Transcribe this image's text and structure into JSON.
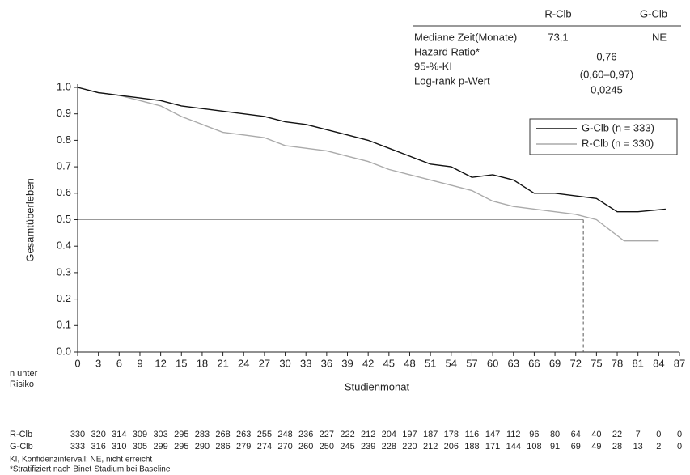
{
  "chart_data": {
    "type": "line",
    "y_label": "Gesamtüberleben",
    "x_label": "Studienmonat",
    "xlim": [
      0,
      87
    ],
    "xticks": [
      0,
      3,
      6,
      9,
      12,
      15,
      18,
      21,
      24,
      27,
      30,
      33,
      36,
      39,
      42,
      45,
      48,
      51,
      54,
      57,
      60,
      63,
      66,
      69,
      72,
      75,
      78,
      81,
      84,
      87
    ],
    "ylim": [
      0,
      1
    ],
    "yticks": [
      {
        "value": 0,
        "label": "0.0"
      },
      0.1,
      0.2,
      0.3,
      0.4,
      0.5,
      0.6,
      0.7,
      0.8,
      0.9,
      {
        "value": 1,
        "label": "1.0"
      }
    ],
    "legend_position": "upper right",
    "series": [
      {
        "name": "G-Clb (n = 333)",
        "color": "#111111",
        "x": [
          0,
          3,
          6,
          9,
          12,
          15,
          18,
          21,
          24,
          27,
          30,
          33,
          36,
          39,
          42,
          45,
          48,
          51,
          54,
          57,
          60,
          63,
          66,
          69,
          72,
          75,
          78,
          81,
          85
        ],
        "values": [
          1,
          0.98,
          0.97,
          0.96,
          0.95,
          0.93,
          0.92,
          0.91,
          0.9,
          0.89,
          0.87,
          0.86,
          0.84,
          0.82,
          0.8,
          0.77,
          0.74,
          0.71,
          0.7,
          0.66,
          0.67,
          0.65,
          0.6,
          0.6,
          0.59,
          0.58,
          0.53,
          0.53,
          0.54
        ]
      },
      {
        "name": "R-Clb (n = 330)",
        "color": "#aaaaaa",
        "x": [
          0,
          3,
          6,
          9,
          12,
          15,
          18,
          21,
          24,
          27,
          30,
          33,
          36,
          39,
          42,
          45,
          48,
          51,
          54,
          57,
          60,
          63,
          66,
          69,
          72,
          75,
          78,
          79,
          84
        ],
        "values": [
          1,
          0.98,
          0.97,
          0.95,
          0.93,
          0.89,
          0.86,
          0.83,
          0.82,
          0.81,
          0.78,
          0.77,
          0.76,
          0.74,
          0.72,
          0.69,
          0.67,
          0.65,
          0.63,
          0.61,
          0.57,
          0.55,
          0.54,
          0.53,
          0.52,
          0.5,
          0.44,
          0.42,
          0.42
        ]
      }
    ],
    "median_reference": {
      "x": 73.1,
      "y": 0.5
    },
    "stats_table": {
      "columns": [
        "R-Clb",
        "G-Clb"
      ],
      "median": {
        "label": "Mediane Zeit(Monate)",
        "values": [
          "73,1",
          "NE"
        ]
      },
      "hazard": {
        "label": "Hazard Ratio*",
        "value": "0,76"
      },
      "ci": {
        "label": "95-%-KI",
        "value": "(0,60–0,97)"
      },
      "pvalue": {
        "label": "Log-rank p-Wert",
        "value": "0,0245"
      }
    },
    "risk_table": {
      "title": [
        "n unter",
        "Risiko"
      ],
      "rows": [
        {
          "name": "R-Clb",
          "values": [
            "330",
            "320",
            "314",
            "309",
            "303",
            "295",
            "283",
            "268",
            "263",
            "255",
            "248",
            "236",
            "227",
            "222",
            "212",
            "204",
            "197",
            "187",
            "178",
            "116",
            "147",
            "112",
            "96",
            "80",
            "64",
            "40",
            "22",
            "7",
            "0",
            "0"
          ]
        },
        {
          "name": "G-Clb",
          "values": [
            "333",
            "316",
            "310",
            "305",
            "299",
            "295",
            "290",
            "286",
            "279",
            "274",
            "270",
            "260",
            "250",
            "245",
            "239",
            "228",
            "220",
            "212",
            "206",
            "188",
            "171",
            "144",
            "108",
            "91",
            "69",
            "49",
            "28",
            "13",
            "2",
            "0"
          ]
        }
      ]
    },
    "footnotes": [
      "KI, Konfidenzintervall; NE, nicht erreicht",
      "*Stratifiziert nach Binet-Stadium bei Baseline"
    ]
  }
}
